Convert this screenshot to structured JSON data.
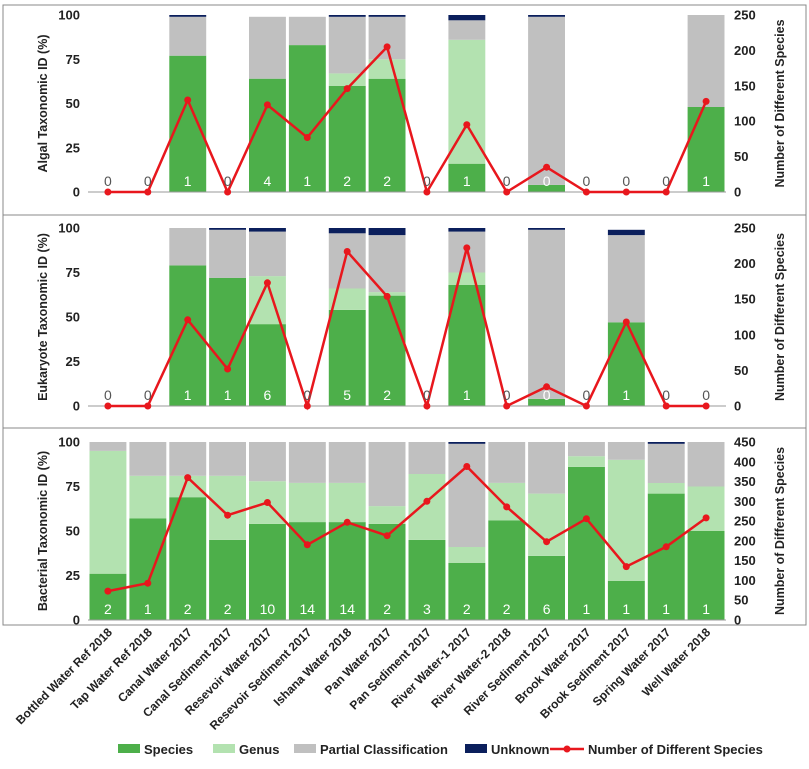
{
  "categories": [
    "Bottled Water Ref 2018",
    "Tap Water Ref 2018",
    "Canal Water 2017",
    "Canal Sediment 2017",
    "Resevoir Water 2017",
    "Resevoir Sediment 2017",
    "Ishana Water 2018",
    "Pan Water 2017",
    "Pan Sediment 2017",
    "River Water-1 2017",
    "River Water-2 2018",
    "River Sediment 2017",
    "Brook Water 2017",
    "Brook Sediment 2017",
    "Spring Water 2017",
    "Well Water 2018"
  ],
  "colors": {
    "species": "#4daf4a",
    "genus": "#b3e2b0",
    "partial": "#c0c0c0",
    "unknown": "#0b1f5c",
    "line": "#e8171d",
    "frame": "#888888"
  },
  "legend": [
    "Species",
    "Genus",
    "Partial Classification",
    "Unknown",
    "Number of Different Species"
  ],
  "chart_data": [
    {
      "type": "bar",
      "ylabel": "Algal Taxonomic ID (%)",
      "y2label": "Number of Different Species",
      "ylim": [
        0,
        100
      ],
      "y2lim": [
        0,
        250
      ],
      "yticks": [
        "0",
        "25",
        "50",
        "75",
        "100"
      ],
      "y2ticks": [
        "0",
        "50",
        "100",
        "150",
        "200",
        "250"
      ],
      "series": [
        {
          "name": "Species",
          "values": [
            0,
            0,
            77,
            0,
            64,
            83,
            60,
            64,
            0,
            16,
            0,
            4,
            0,
            0,
            0,
            48
          ]
        },
        {
          "name": "Genus",
          "values": [
            0,
            0,
            0,
            0,
            0,
            0,
            7,
            11,
            0,
            70,
            0,
            0,
            0,
            0,
            0,
            0
          ]
        },
        {
          "name": "Partial Classification",
          "values": [
            0,
            0,
            22,
            0,
            35,
            16,
            32,
            24,
            0,
            11,
            0,
            95,
            0,
            0,
            0,
            52
          ]
        },
        {
          "name": "Unknown",
          "values": [
            0,
            0,
            1,
            0,
            0,
            0,
            1,
            1,
            0,
            3,
            0,
            1,
            0,
            0,
            0,
            0
          ]
        }
      ],
      "line": {
        "name": "Number of Different Species",
        "values": [
          0,
          0,
          130,
          0,
          123,
          77,
          146,
          205,
          0,
          95,
          0,
          35,
          0,
          0,
          0,
          128
        ]
      },
      "counts": [
        "0",
        "0",
        "1",
        "0",
        "4",
        "1",
        "2",
        "2",
        "0",
        "1",
        "0",
        "0",
        "0",
        "0",
        "0",
        "1"
      ]
    },
    {
      "type": "bar",
      "ylabel": "Eukaryote Taxonomic ID (%)",
      "y2label": "Number of Different Species",
      "ylim": [
        0,
        100
      ],
      "y2lim": [
        0,
        250
      ],
      "yticks": [
        "0",
        "25",
        "50",
        "75",
        "100"
      ],
      "y2ticks": [
        "0",
        "50",
        "100",
        "150",
        "200",
        "250"
      ],
      "series": [
        {
          "name": "Species",
          "values": [
            0,
            0,
            79,
            72,
            46,
            0,
            54,
            62,
            0,
            68,
            0,
            4,
            0,
            47,
            0,
            0
          ]
        },
        {
          "name": "Genus",
          "values": [
            0,
            0,
            0,
            0,
            27,
            0,
            12,
            2,
            0,
            7,
            0,
            0,
            0,
            0,
            0,
            0
          ]
        },
        {
          "name": "Partial Classification",
          "values": [
            0,
            0,
            21,
            27,
            25,
            0,
            31,
            32,
            0,
            23,
            0,
            95,
            0,
            49,
            0,
            0
          ]
        },
        {
          "name": "Unknown",
          "values": [
            0,
            0,
            0,
            1,
            2,
            0,
            3,
            4,
            0,
            2,
            0,
            1,
            0,
            3,
            0,
            0
          ]
        }
      ],
      "line": {
        "name": "Number of Different Species",
        "values": [
          0,
          0,
          121,
          52,
          173,
          0,
          217,
          154,
          0,
          222,
          0,
          27,
          0,
          118,
          0,
          0
        ]
      },
      "counts": [
        "0",
        "0",
        "1",
        "1",
        "6",
        "0",
        "5",
        "2",
        "0",
        "1",
        "0",
        "0",
        "0",
        "1",
        "0",
        "0"
      ]
    },
    {
      "type": "bar",
      "ylabel": "Bacterial Taxonomic ID (%)",
      "y2label": "Number of Different Species",
      "ylim": [
        0,
        100
      ],
      "y2lim": [
        0,
        450
      ],
      "yticks": [
        "0",
        "25",
        "50",
        "75",
        "100"
      ],
      "y2ticks": [
        "0",
        "50",
        "100",
        "150",
        "200",
        "250",
        "300",
        "350",
        "400",
        "450"
      ],
      "series": [
        {
          "name": "Species",
          "values": [
            26,
            57,
            69,
            45,
            54,
            55,
            55,
            54,
            45,
            32,
            56,
            36,
            86,
            22,
            71,
            50
          ]
        },
        {
          "name": "Genus",
          "values": [
            69,
            24,
            12,
            36,
            24,
            22,
            22,
            10,
            37,
            9,
            21,
            35,
            6,
            68,
            6,
            25
          ]
        },
        {
          "name": "Partial Classification",
          "values": [
            5,
            19,
            19,
            19,
            22,
            23,
            23,
            36,
            18,
            58,
            23,
            29,
            8,
            10,
            22,
            25
          ]
        },
        {
          "name": "Unknown",
          "values": [
            0,
            0,
            0,
            0,
            0,
            0,
            0,
            0,
            0,
            1,
            0,
            0,
            0,
            0,
            1,
            0
          ]
        }
      ],
      "line": {
        "name": "Number of Different Species",
        "values": [
          73,
          93,
          360,
          265,
          297,
          190,
          247,
          213,
          300,
          388,
          286,
          198,
          256,
          135,
          185,
          258
        ]
      },
      "counts": [
        "2",
        "1",
        "2",
        "2",
        "10",
        "14",
        "14",
        "2",
        "3",
        "2",
        "2",
        "6",
        "1",
        "1",
        "1",
        "1"
      ]
    }
  ]
}
